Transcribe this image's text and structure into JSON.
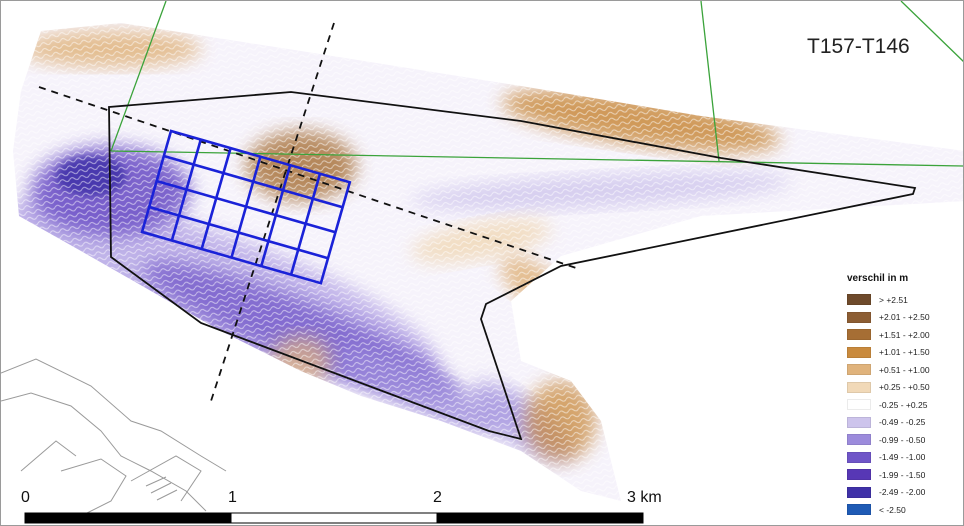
{
  "map": {
    "title": "T157-T146",
    "legend": {
      "title": "verschil in m",
      "items": [
        {
          "label": "> +2.51",
          "color": "#6e4a2b"
        },
        {
          "label": "+2.01 - +2.50",
          "color": "#8c5d33"
        },
        {
          "label": "+1.51 - +2.00",
          "color": "#a66e34"
        },
        {
          "label": "+1.01 - +1.50",
          "color": "#c98a3d"
        },
        {
          "label": "+0.51 - +1.00",
          "color": "#e0b37c"
        },
        {
          "label": "+0.25 - +0.50",
          "color": "#f1d9b8"
        },
        {
          "label": "-0.25 - +0.25",
          "color": "#ffffff"
        },
        {
          "label": "-0.49 - -0.25",
          "color": "#cdc4ec"
        },
        {
          "label": "-0.99 - -0.50",
          "color": "#9c8bdc"
        },
        {
          "label": "-1.49 - -1.00",
          "color": "#6f55c8"
        },
        {
          "label": "-1.99 - -1.50",
          "color": "#5737b5"
        },
        {
          "label": "-2.49 - -2.00",
          "color": "#3f31a8"
        },
        {
          "label": "< -2.50",
          "color": "#1f5bb5"
        }
      ]
    },
    "scalebar": {
      "labels": [
        "0",
        "1",
        "2",
        "3 km"
      ]
    }
  }
}
